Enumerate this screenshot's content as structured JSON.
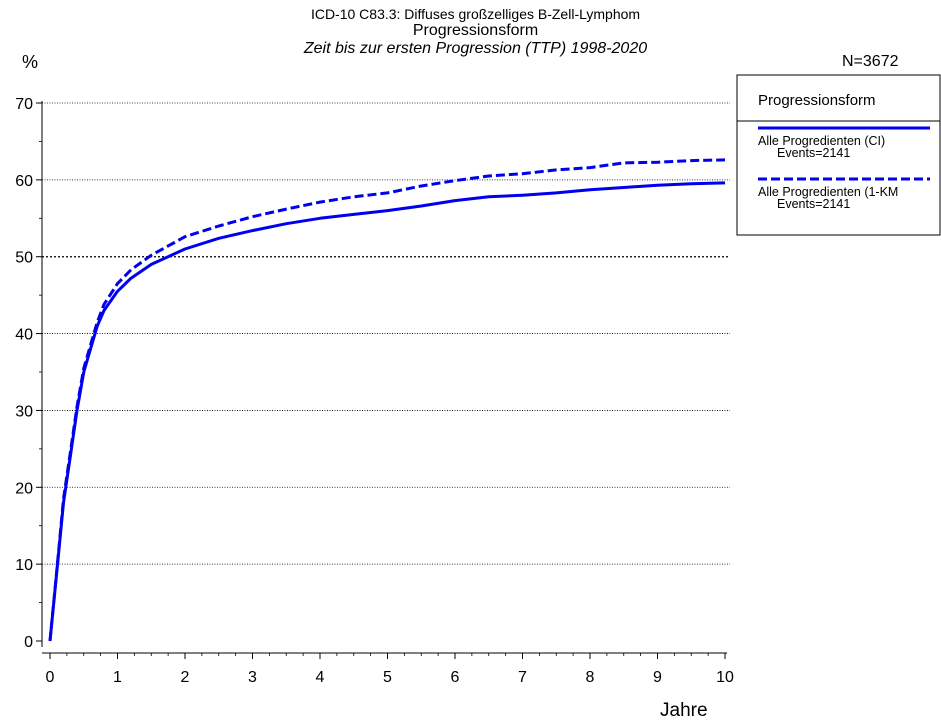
{
  "chart_data": {
    "type": "line",
    "title_line1": "ICD-10 C83.3: Diffuses großzelliges B-Zell-Lymphom",
    "title_line2": "Progressionsform",
    "title_line3": "Zeit bis zur ersten Progression (TTP) 1998-2020",
    "n_label": "N=3672",
    "xlabel": "Jahre",
    "ylabel": "%",
    "xlim": [
      0,
      10
    ],
    "ylim": [
      0,
      70
    ],
    "x_ticks": [
      "0",
      "1",
      "2",
      "3",
      "4",
      "5",
      "6",
      "7",
      "8",
      "9",
      "10"
    ],
    "y_ticks": [
      "0",
      "10",
      "20",
      "30",
      "40",
      "50",
      "60",
      "70"
    ],
    "grid": "horizontal dotted",
    "reference_line_y": 50,
    "legend": {
      "title": "Progressionsform",
      "placement": "right",
      "entries": [
        {
          "label": "Alle Progredienten (CI)",
          "sublabel": "Events=2141",
          "style": "solid"
        },
        {
          "label": "Alle Progredienten (1-KM",
          "sublabel": "Events=2141",
          "style": "dashed"
        }
      ]
    },
    "series": [
      {
        "name": "Alle Progredienten (CI)",
        "color": "#0000ee",
        "style": "solid",
        "x": [
          0,
          0.1,
          0.2,
          0.3,
          0.4,
          0.5,
          0.6,
          0.7,
          0.8,
          1.0,
          1.2,
          1.5,
          2.0,
          2.5,
          3.0,
          3.5,
          4.0,
          4.5,
          5.0,
          5.5,
          6.0,
          6.5,
          7.0,
          7.5,
          8.0,
          8.5,
          9.0,
          9.5,
          10.0
        ],
        "y": [
          0,
          9,
          18,
          24,
          30,
          35,
          38,
          41,
          43,
          45.5,
          47.2,
          49,
          51,
          52.4,
          53.4,
          54.3,
          55,
          55.5,
          56,
          56.6,
          57.3,
          57.8,
          58,
          58.3,
          58.7,
          59,
          59.3,
          59.5,
          59.6
        ]
      },
      {
        "name": "Alle Progredienten (1-KM",
        "color": "#0000ee",
        "style": "dashed",
        "x": [
          0,
          0.1,
          0.2,
          0.3,
          0.4,
          0.5,
          0.6,
          0.7,
          0.8,
          1.0,
          1.2,
          1.5,
          2.0,
          2.5,
          3.0,
          3.5,
          4.0,
          4.5,
          5.0,
          5.5,
          6.0,
          6.5,
          7.0,
          7.5,
          8.0,
          8.5,
          9.0,
          9.5,
          10.0
        ],
        "y": [
          0,
          9.2,
          18.5,
          24.5,
          30.5,
          35.5,
          38.5,
          41.5,
          43.8,
          46.5,
          48.3,
          50.2,
          52.6,
          54,
          55.2,
          56.2,
          57.1,
          57.8,
          58.3,
          59.2,
          59.9,
          60.5,
          60.8,
          61.3,
          61.6,
          62.2,
          62.3,
          62.5,
          62.6
        ]
      }
    ]
  }
}
